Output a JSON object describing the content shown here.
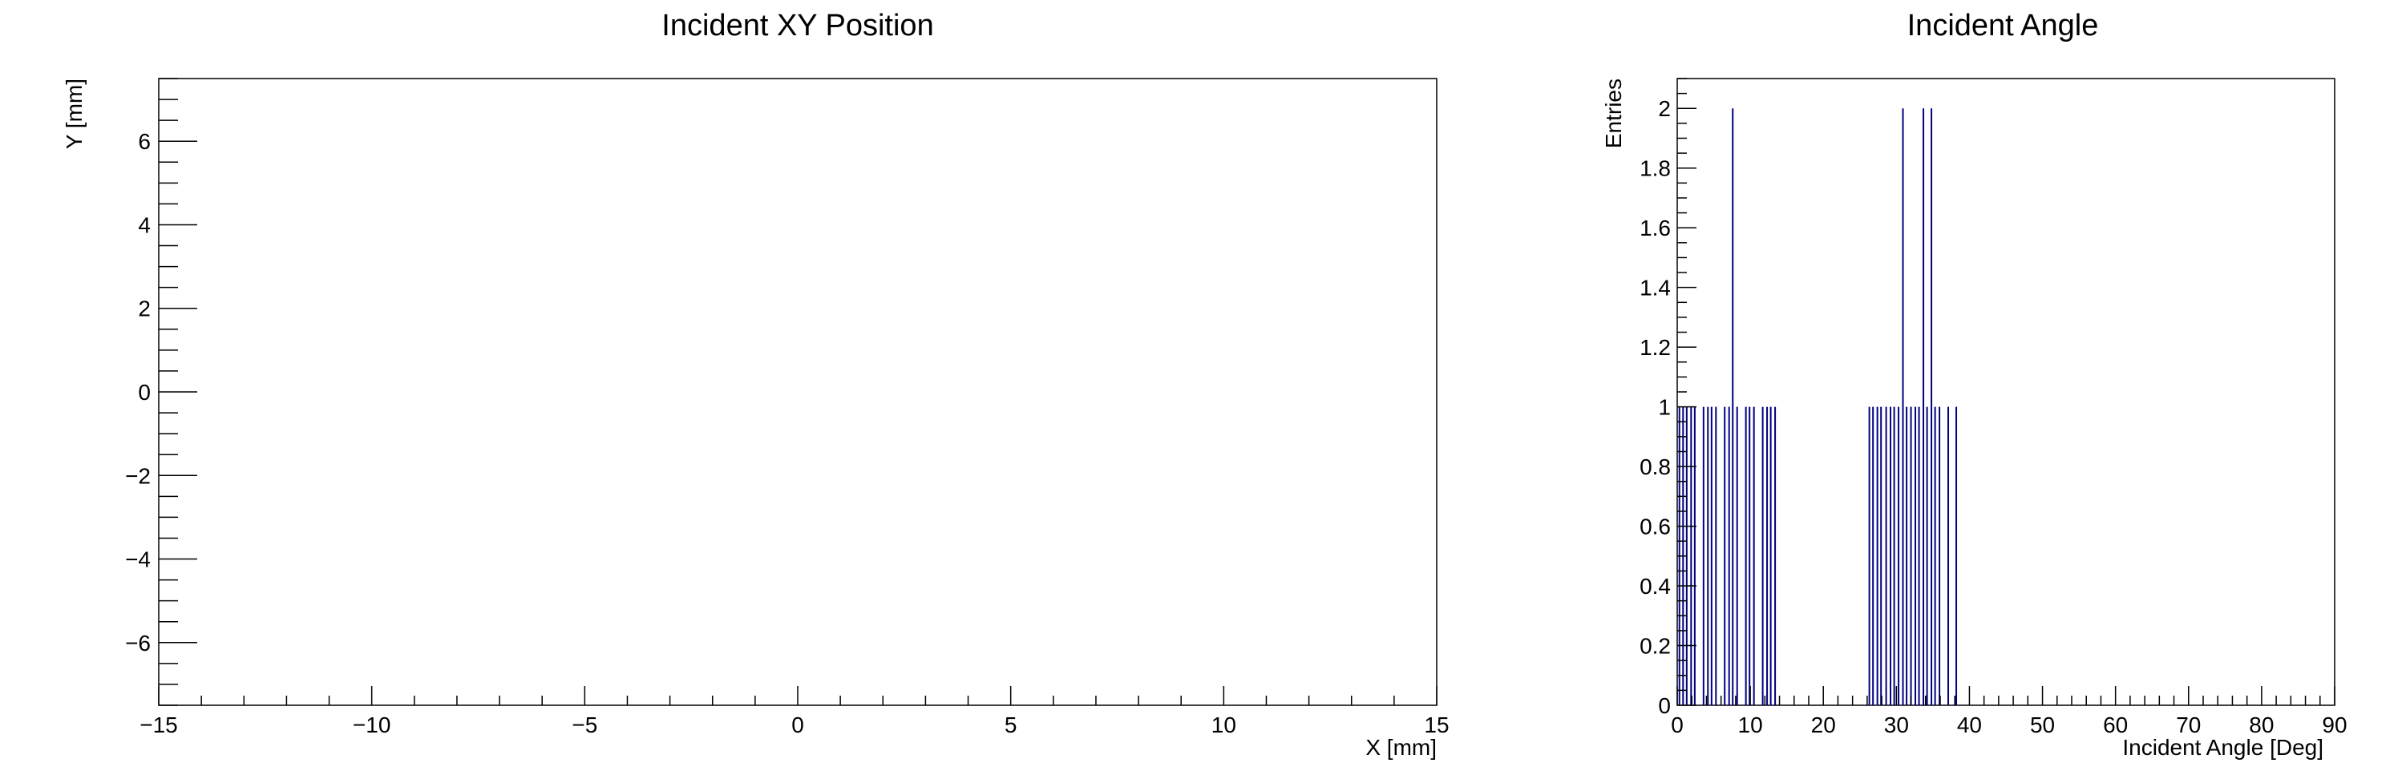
{
  "colors": {
    "background": "#ffffff",
    "axis": "#000000",
    "histogram_line": "#00007f"
  },
  "chart_data": [
    {
      "type": "scatter",
      "title": "Incident XY Position",
      "xlabel": "X [mm]",
      "ylabel": "Y [mm]",
      "xlim": [
        -15,
        15
      ],
      "ylim": [
        -7.5,
        7.5
      ],
      "x_ticks": [
        -15,
        -10,
        -5,
        0,
        5,
        10,
        15
      ],
      "x_tick_labels": [
        "−15",
        "−10",
        "−5",
        "0",
        "5",
        "10",
        "15"
      ],
      "y_ticks": [
        -6,
        -4,
        -2,
        0,
        2,
        4,
        6
      ],
      "y_tick_labels": [
        "−6",
        "−4",
        "−2",
        "0",
        "2",
        "4",
        "6"
      ],
      "grid": false,
      "points": []
    },
    {
      "type": "bar",
      "title": "Incident Angle",
      "xlabel": "Incident Angle [Deg]",
      "ylabel": "Entries",
      "xlim": [
        0,
        90
      ],
      "ylim": [
        0,
        2.1
      ],
      "x_ticks": [
        0,
        10,
        20,
        30,
        40,
        50,
        60,
        70,
        80,
        90
      ],
      "x_tick_labels": [
        "0",
        "10",
        "20",
        "30",
        "40",
        "50",
        "60",
        "70",
        "80",
        "90"
      ],
      "y_ticks": [
        0,
        0.2,
        0.4,
        0.6,
        0.8,
        1,
        1.2,
        1.4,
        1.6,
        1.8,
        2
      ],
      "y_tick_labels": [
        "0",
        "0.2",
        "0.4",
        "0.6",
        "0.8",
        "1",
        "1.2",
        "1.4",
        "1.6",
        "1.8",
        "2"
      ],
      "grid": false,
      "bins": [
        {
          "x": 0.3,
          "y": 1
        },
        {
          "x": 0.8,
          "y": 1
        },
        {
          "x": 1.3,
          "y": 1
        },
        {
          "x": 1.9,
          "y": 1
        },
        {
          "x": 2.4,
          "y": 1
        },
        {
          "x": 3.6,
          "y": 1
        },
        {
          "x": 4.2,
          "y": 1
        },
        {
          "x": 4.7,
          "y": 1
        },
        {
          "x": 5.3,
          "y": 1
        },
        {
          "x": 6.5,
          "y": 1
        },
        {
          "x": 7.1,
          "y": 1
        },
        {
          "x": 7.6,
          "y": 2
        },
        {
          "x": 8.2,
          "y": 1
        },
        {
          "x": 9.4,
          "y": 1
        },
        {
          "x": 9.9,
          "y": 1
        },
        {
          "x": 10.5,
          "y": 1
        },
        {
          "x": 11.7,
          "y": 1
        },
        {
          "x": 12.3,
          "y": 1
        },
        {
          "x": 12.8,
          "y": 1
        },
        {
          "x": 13.4,
          "y": 1
        },
        {
          "x": 26.3,
          "y": 1
        },
        {
          "x": 26.8,
          "y": 1
        },
        {
          "x": 27.4,
          "y": 1
        },
        {
          "x": 27.9,
          "y": 1
        },
        {
          "x": 28.6,
          "y": 1
        },
        {
          "x": 29.2,
          "y": 1
        },
        {
          "x": 29.7,
          "y": 1
        },
        {
          "x": 30.3,
          "y": 1
        },
        {
          "x": 30.9,
          "y": 2
        },
        {
          "x": 31.4,
          "y": 1
        },
        {
          "x": 32.0,
          "y": 1
        },
        {
          "x": 32.6,
          "y": 1
        },
        {
          "x": 33.1,
          "y": 1
        },
        {
          "x": 33.7,
          "y": 2
        },
        {
          "x": 34.2,
          "y": 1
        },
        {
          "x": 34.8,
          "y": 2
        },
        {
          "x": 35.3,
          "y": 1
        },
        {
          "x": 35.9,
          "y": 1
        },
        {
          "x": 37.1,
          "y": 1
        },
        {
          "x": 38.2,
          "y": 1
        }
      ]
    }
  ]
}
